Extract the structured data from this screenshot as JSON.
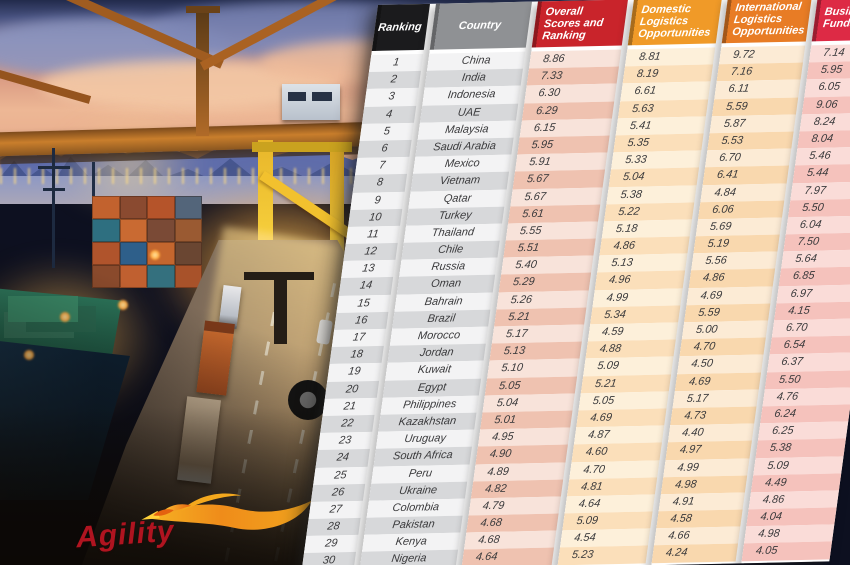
{
  "logo": {
    "text": "Agility"
  },
  "table": {
    "columns": [
      {
        "key": "rank",
        "label": "Ranking",
        "header_bg": "#1b1b1d",
        "row_light": "#f3f3f4",
        "row_dark": "#d7d8da",
        "align": "center"
      },
      {
        "key": "country",
        "label": "Country",
        "header_bg": "#8f9194",
        "row_light": "#f3f3f4",
        "row_dark": "#d7d8da",
        "align": "center"
      },
      {
        "key": "overall",
        "label": "Overall Scores and Ranking",
        "header_bg": "#c9242b",
        "row_light": "#f8e3da",
        "row_dark": "#efc2b0",
        "align": "num"
      },
      {
        "key": "domestic",
        "label": "Domestic Logistics Opportunities",
        "header_bg": "#f09a28",
        "row_light": "#fdf0da",
        "row_dark": "#fbdfba",
        "align": "num"
      },
      {
        "key": "international",
        "label": "International Logistics Opportunities",
        "header_bg": "#e87c25",
        "row_light": "#fcebd5",
        "row_dark": "#f9d8ae",
        "align": "num"
      },
      {
        "key": "business",
        "label": "Business Fundamentals",
        "header_bg": "#dd2a45",
        "row_light": "#fadcd8",
        "row_dark": "#f5c2bc",
        "align": "num"
      }
    ],
    "rows": [
      [
        "1",
        "China",
        "8.86",
        "8.81",
        "9.72",
        "7.14"
      ],
      [
        "2",
        "India",
        "7.33",
        "8.19",
        "7.16",
        "5.95"
      ],
      [
        "3",
        "Indonesia",
        "6.30",
        "6.61",
        "6.11",
        "6.05"
      ],
      [
        "4",
        "UAE",
        "6.29",
        "5.63",
        "5.59",
        "9.06"
      ],
      [
        "5",
        "Malaysia",
        "6.15",
        "5.41",
        "5.87",
        "8.24"
      ],
      [
        "6",
        "Saudi Arabia",
        "5.95",
        "5.35",
        "5.53",
        "8.04"
      ],
      [
        "7",
        "Mexico",
        "5.91",
        "5.33",
        "6.70",
        "5.46"
      ],
      [
        "8",
        "Vietnam",
        "5.67",
        "5.04",
        "6.41",
        "5.44"
      ],
      [
        "9",
        "Qatar",
        "5.67",
        "5.38",
        "4.84",
        "7.97"
      ],
      [
        "10",
        "Turkey",
        "5.61",
        "5.22",
        "6.06",
        "5.50"
      ],
      [
        "11",
        "Thailand",
        "5.55",
        "5.18",
        "5.69",
        "6.04"
      ],
      [
        "12",
        "Chile",
        "5.51",
        "4.86",
        "5.19",
        "7.50"
      ],
      [
        "13",
        "Russia",
        "5.40",
        "5.13",
        "5.56",
        "5.64"
      ],
      [
        "14",
        "Oman",
        "5.29",
        "4.96",
        "4.86",
        "6.85"
      ],
      [
        "15",
        "Bahrain",
        "5.26",
        "4.99",
        "4.69",
        "6.97"
      ],
      [
        "16",
        "Brazil",
        "5.21",
        "5.34",
        "5.59",
        "4.15"
      ],
      [
        "17",
        "Morocco",
        "5.17",
        "4.59",
        "5.00",
        "6.70"
      ],
      [
        "18",
        "Jordan",
        "5.13",
        "4.88",
        "4.70",
        "6.54"
      ],
      [
        "19",
        "Kuwait",
        "5.10",
        "5.09",
        "4.50",
        "6.37"
      ],
      [
        "20",
        "Egypt",
        "5.05",
        "5.21",
        "4.69",
        "5.50"
      ],
      [
        "21",
        "Philippines",
        "5.04",
        "5.05",
        "5.17",
        "4.76"
      ],
      [
        "22",
        "Kazakhstan",
        "5.01",
        "4.69",
        "4.73",
        "6.24"
      ],
      [
        "23",
        "Uruguay",
        "4.95",
        "4.87",
        "4.40",
        "6.25"
      ],
      [
        "24",
        "South Africa",
        "4.90",
        "4.60",
        "4.97",
        "5.38"
      ],
      [
        "25",
        "Peru",
        "4.89",
        "4.70",
        "4.99",
        "5.09"
      ],
      [
        "26",
        "Ukraine",
        "4.82",
        "4.81",
        "4.98",
        "4.49"
      ],
      [
        "27",
        "Colombia",
        "4.79",
        "4.64",
        "4.91",
        "4.86"
      ],
      [
        "28",
        "Pakistan",
        "4.68",
        "5.09",
        "4.58",
        "4.04"
      ],
      [
        "29",
        "Kenya",
        "4.68",
        "4.54",
        "4.66",
        "4.98"
      ],
      [
        "30",
        "Nigeria",
        "4.64",
        "5.23",
        "4.24",
        "4.05"
      ]
    ]
  }
}
